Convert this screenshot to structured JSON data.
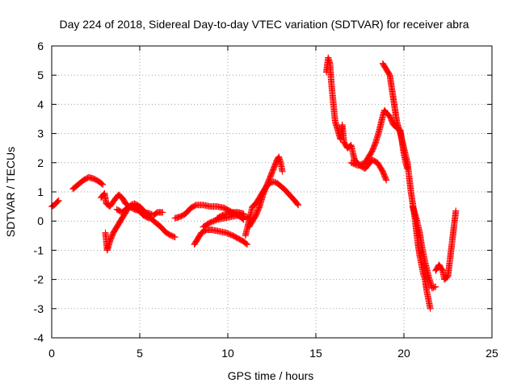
{
  "chart_data": {
    "type": "scatter",
    "title": "Day 224 of 2018, Sidereal Day-to-day VTEC variation (SDTVAR) for receiver abra",
    "xlabel": "GPS time / hours",
    "ylabel": "SDTVAR / TECUs",
    "xlim": [
      0,
      25
    ],
    "ylim": [
      -4,
      6
    ],
    "xticks": [
      "0",
      "5",
      "10",
      "15",
      "20",
      "25"
    ],
    "yticks": [
      "-4",
      "-3",
      "-2",
      "-1",
      "0",
      "1",
      "2",
      "3",
      "4",
      "5",
      "6"
    ],
    "grid": true,
    "marker": "+",
    "series": [
      {
        "name": "SDTVAR",
        "color": "#ff0000",
        "tracks": [
          [
            [
              0.0,
              0.5
            ],
            [
              0.15,
              0.55
            ],
            [
              0.3,
              0.65
            ],
            [
              0.4,
              0.7
            ]
          ],
          [
            [
              1.2,
              1.1
            ],
            [
              1.5,
              1.25
            ],
            [
              1.8,
              1.4
            ],
            [
              2.1,
              1.5
            ],
            [
              2.4,
              1.45
            ],
            [
              2.7,
              1.35
            ],
            [
              2.9,
              1.25
            ]
          ],
          [
            [
              2.8,
              0.8
            ],
            [
              3.0,
              0.95
            ],
            [
              3.1,
              0.6
            ],
            [
              3.3,
              0.5
            ],
            [
              3.6,
              0.75
            ],
            [
              3.8,
              0.9
            ],
            [
              4.0,
              0.8
            ],
            [
              4.2,
              0.6
            ],
            [
              4.4,
              0.5
            ],
            [
              4.7,
              0.4
            ],
            [
              5.0,
              0.35
            ],
            [
              5.3,
              0.3
            ],
            [
              5.6,
              0.25
            ],
            [
              5.8,
              0.2
            ],
            [
              6.0,
              0.3
            ],
            [
              6.3,
              0.3
            ]
          ],
          [
            [
              3.05,
              -0.4
            ],
            [
              3.1,
              -0.7
            ],
            [
              3.15,
              -1.0
            ],
            [
              3.3,
              -0.7
            ],
            [
              3.5,
              -0.4
            ],
            [
              3.7,
              -0.2
            ],
            [
              3.9,
              0.0
            ],
            [
              4.1,
              0.2
            ],
            [
              4.3,
              0.4
            ],
            [
              4.5,
              0.55
            ],
            [
              4.7,
              0.6
            ],
            [
              5.0,
              0.5
            ],
            [
              5.3,
              0.3
            ],
            [
              5.6,
              0.1
            ],
            [
              5.9,
              -0.05
            ],
            [
              6.2,
              -0.2
            ],
            [
              6.5,
              -0.4
            ],
            [
              6.8,
              -0.5
            ],
            [
              7.0,
              -0.55
            ]
          ],
          [
            [
              3.7,
              0.4
            ],
            [
              4.0,
              0.3
            ],
            [
              4.3,
              0.45
            ],
            [
              4.6,
              0.5
            ],
            [
              4.9,
              0.4
            ],
            [
              5.2,
              0.2
            ],
            [
              5.5,
              0.1
            ]
          ],
          [
            [
              7.0,
              0.1
            ],
            [
              7.3,
              0.15
            ],
            [
              7.6,
              0.25
            ],
            [
              7.9,
              0.45
            ],
            [
              8.2,
              0.55
            ],
            [
              8.6,
              0.55
            ],
            [
              9.0,
              0.5
            ],
            [
              9.4,
              0.5
            ],
            [
              9.8,
              0.45
            ],
            [
              10.1,
              0.35
            ],
            [
              10.4,
              0.25
            ],
            [
              10.7,
              0.15
            ],
            [
              10.9,
              0.05
            ]
          ],
          [
            [
              8.1,
              -0.8
            ],
            [
              8.3,
              -0.6
            ],
            [
              8.5,
              -0.4
            ],
            [
              8.8,
              -0.3
            ],
            [
              9.1,
              -0.3
            ],
            [
              9.5,
              -0.35
            ],
            [
              9.9,
              -0.4
            ],
            [
              10.3,
              -0.5
            ],
            [
              10.6,
              -0.6
            ],
            [
              10.9,
              -0.7
            ],
            [
              11.1,
              -0.8
            ]
          ],
          [
            [
              8.6,
              -0.2
            ],
            [
              9.0,
              -0.05
            ],
            [
              9.4,
              0.05
            ],
            [
              9.8,
              0.1
            ],
            [
              10.2,
              0.15
            ],
            [
              10.6,
              0.2
            ],
            [
              11.0,
              0.15
            ],
            [
              11.2,
              0.1
            ]
          ],
          [
            [
              9.4,
              0.1
            ],
            [
              9.7,
              0.2
            ],
            [
              10.0,
              0.25
            ],
            [
              10.3,
              0.3
            ],
            [
              10.6,
              0.3
            ],
            [
              10.9,
              0.25
            ]
          ],
          [
            [
              11.0,
              -0.5
            ],
            [
              11.2,
              0.0
            ],
            [
              11.4,
              0.5
            ],
            [
              11.6,
              0.6
            ],
            [
              11.8,
              0.8
            ],
            [
              12.0,
              1.0
            ],
            [
              12.2,
              1.2
            ],
            [
              12.4,
              1.3
            ],
            [
              12.6,
              1.35
            ],
            [
              12.8,
              1.3
            ],
            [
              13.0,
              1.2
            ],
            [
              13.2,
              1.1
            ],
            [
              13.5,
              0.9
            ],
            [
              13.8,
              0.7
            ],
            [
              14.0,
              0.55
            ]
          ],
          [
            [
              11.2,
              -0.2
            ],
            [
              11.4,
              0.0
            ],
            [
              11.6,
              0.2
            ],
            [
              11.8,
              0.5
            ],
            [
              12.0,
              0.9
            ],
            [
              12.2,
              1.2
            ],
            [
              12.4,
              1.5
            ],
            [
              12.6,
              1.8
            ],
            [
              12.8,
              2.1
            ],
            [
              12.9,
              2.2
            ],
            [
              13.0,
              2.0
            ],
            [
              13.1,
              1.7
            ]
          ],
          [
            [
              15.6,
              5.1
            ],
            [
              15.7,
              5.6
            ],
            [
              15.8,
              5.4
            ],
            [
              15.9,
              4.6
            ],
            [
              16.0,
              4.0
            ],
            [
              16.1,
              3.4
            ],
            [
              16.2,
              3.2
            ],
            [
              16.3,
              3.0
            ],
            [
              16.4,
              2.8
            ],
            [
              16.5,
              3.3
            ],
            [
              16.6,
              2.7
            ],
            [
              16.8,
              2.5
            ],
            [
              17.0,
              2.6
            ],
            [
              17.2,
              2.1
            ],
            [
              17.5,
              1.9
            ],
            [
              17.8,
              1.8
            ],
            [
              18.0,
              1.95
            ],
            [
              18.2,
              2.1
            ],
            [
              18.5,
              2.0
            ],
            [
              18.8,
              1.7
            ],
            [
              19.0,
              1.4
            ]
          ],
          [
            [
              17.0,
              2.0
            ],
            [
              17.4,
              1.9
            ],
            [
              17.8,
              2.0
            ],
            [
              18.2,
              2.4
            ],
            [
              18.4,
              2.7
            ],
            [
              18.6,
              3.1
            ],
            [
              18.8,
              3.6
            ],
            [
              18.9,
              3.8
            ],
            [
              19.0,
              3.7
            ],
            [
              19.2,
              3.6
            ],
            [
              19.4,
              3.3
            ],
            [
              19.6,
              3.2
            ],
            [
              19.8,
              3.1
            ],
            [
              19.9,
              2.7
            ],
            [
              20.0,
              2.3
            ],
            [
              20.1,
              2.0
            ],
            [
              20.2,
              1.8
            ]
          ],
          [
            [
              18.8,
              5.4
            ],
            [
              19.0,
              5.2
            ],
            [
              19.2,
              5.0
            ],
            [
              19.3,
              4.6
            ],
            [
              19.4,
              4.2
            ],
            [
              19.5,
              3.8
            ],
            [
              19.6,
              3.4
            ],
            [
              19.7,
              3.2
            ],
            [
              19.8,
              3.0
            ],
            [
              20.0,
              2.5
            ],
            [
              20.2,
              2.0
            ],
            [
              20.3,
              1.5
            ],
            [
              20.4,
              1.0
            ],
            [
              20.5,
              0.6
            ],
            [
              20.6,
              0.2
            ],
            [
              20.7,
              -0.3
            ],
            [
              20.8,
              -0.8
            ],
            [
              20.9,
              -1.2
            ],
            [
              21.0,
              -1.5
            ],
            [
              21.1,
              -1.8
            ],
            [
              21.2,
              -2.0
            ],
            [
              21.3,
              -2.4
            ],
            [
              21.4,
              -2.7
            ],
            [
              21.5,
              -3.0
            ]
          ],
          [
            [
              20.5,
              0.5
            ],
            [
              20.7,
              0.1
            ],
            [
              20.9,
              -0.4
            ],
            [
              21.0,
              -0.8
            ],
            [
              21.2,
              -1.4
            ],
            [
              21.4,
              -1.9
            ],
            [
              21.6,
              -2.3
            ],
            [
              21.8,
              -2.25
            ]
          ],
          [
            [
              21.8,
              -1.7
            ],
            [
              22.0,
              -1.5
            ],
            [
              22.2,
              -1.7
            ],
            [
              22.3,
              -2.0
            ],
            [
              22.5,
              -1.9
            ],
            [
              22.6,
              -1.4
            ],
            [
              22.7,
              -0.9
            ],
            [
              22.8,
              -0.4
            ],
            [
              22.9,
              0.1
            ],
            [
              22.95,
              0.35
            ]
          ]
        ]
      }
    ]
  }
}
